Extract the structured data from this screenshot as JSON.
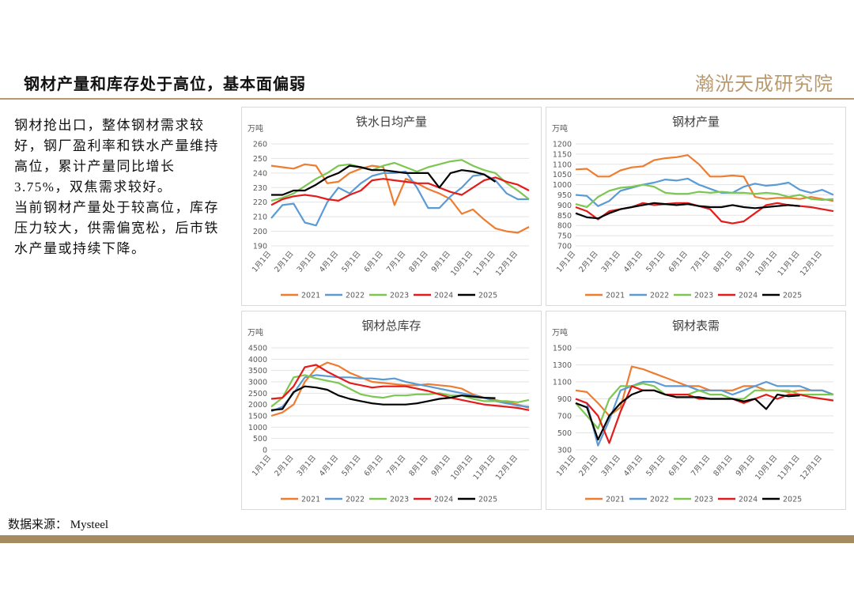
{
  "title": "钢材产量和库存处于高位，基本面偏弱",
  "logo": "瀚洸天成研究院",
  "body": [
    "钢材抢出口，整体钢材需求较好，钢厂盈利率和铁水产量维持高位，累计产量同比增长3.75%，双焦需求较好。",
    "当前钢材产量处于较高位，库存压力较大，供需偏宽松，后市铁水产量或持续下降。"
  ],
  "source": "数据来源： Mysteel",
  "chart_data": [
    {
      "type": "line",
      "title": "铁水日均产量",
      "y_label": "万吨",
      "grid": true,
      "legend": "bottom",
      "categories": [
        "1月1日",
        null,
        "2月1日",
        null,
        "3月1日",
        null,
        "4月1日",
        null,
        "5月1日",
        null,
        "6月1日",
        null,
        "7月1日",
        null,
        "8月1日",
        null,
        "9月1日",
        null,
        "10月1日",
        null,
        "11月1日",
        null,
        "12月1日",
        null
      ],
      "ylim": [
        190,
        260
      ],
      "yticks": [
        190,
        200,
        210,
        220,
        230,
        240,
        250,
        260
      ],
      "series": [
        {
          "name": "2021",
          "color": "#ED7D31",
          "values": [
            245,
            244,
            243,
            246,
            245,
            233,
            234,
            240,
            243,
            245,
            244,
            218,
            236,
            233,
            229,
            226,
            222,
            212,
            215,
            208,
            202,
            200,
            199,
            203
          ]
        },
        {
          "name": "2022",
          "color": "#5B9BD5",
          "values": [
            209,
            218,
            219,
            206,
            204,
            220,
            230,
            226,
            233,
            238,
            240,
            240,
            241,
            230,
            216,
            216,
            224,
            230,
            238,
            239,
            235,
            226,
            222,
            222
          ]
        },
        {
          "name": "2023",
          "color": "#7CC752",
          "values": [
            221,
            223,
            226,
            231,
            236,
            240,
            245,
            246,
            244,
            242,
            245,
            247,
            244,
            241,
            244,
            246,
            248,
            249,
            245,
            242,
            240,
            233,
            228,
            222
          ]
        },
        {
          "name": "2024",
          "color": "#E41B1B",
          "values": [
            218,
            222,
            224,
            225,
            224,
            222,
            221,
            225,
            228,
            235,
            236,
            235,
            234,
            233,
            233,
            230,
            227,
            225,
            230,
            235,
            237,
            234,
            232,
            228
          ]
        },
        {
          "name": "2025",
          "color": "#000000",
          "values": [
            225,
            225,
            228,
            228,
            232,
            237,
            240,
            245,
            244,
            242,
            242,
            241,
            240,
            240,
            240,
            230,
            240,
            242,
            241,
            239,
            234,
            null,
            null,
            null
          ]
        }
      ]
    },
    {
      "type": "line",
      "title": "钢材产量",
      "y_label": "万吨",
      "grid": true,
      "legend": "bottom",
      "categories": [
        "1月1日",
        null,
        "2月1日",
        null,
        "3月1日",
        null,
        "4月1日",
        null,
        "5月1日",
        null,
        "6月1日",
        null,
        "7月1日",
        null,
        "8月1日",
        null,
        "9月1日",
        null,
        "10月1日",
        null,
        "11月1日",
        null,
        "12月1日",
        null
      ],
      "ylim": [
        700,
        1200
      ],
      "yticks": [
        700,
        750,
        800,
        850,
        900,
        950,
        1000,
        1050,
        1100,
        1150,
        1200
      ],
      "series": [
        {
          "name": "2021",
          "color": "#ED7D31",
          "values": [
            1075,
            1078,
            1040,
            1040,
            1070,
            1085,
            1090,
            1120,
            1130,
            1135,
            1145,
            1100,
            1040,
            1040,
            1045,
            1040,
            940,
            930,
            935,
            935,
            930,
            940,
            930,
            920
          ]
        },
        {
          "name": "2022",
          "color": "#5B9BD5",
          "values": [
            950,
            945,
            895,
            920,
            970,
            985,
            1000,
            1010,
            1025,
            1020,
            1030,
            1000,
            980,
            960,
            960,
            990,
            1005,
            995,
            1000,
            1010,
            975,
            960,
            975,
            950
          ]
        },
        {
          "name": "2023",
          "color": "#7CC752",
          "values": [
            905,
            890,
            940,
            970,
            985,
            990,
            1000,
            990,
            960,
            955,
            955,
            965,
            960,
            965,
            960,
            960,
            955,
            960,
            955,
            940,
            950,
            930,
            925,
            930
          ]
        },
        {
          "name": "2024",
          "color": "#E41B1B",
          "values": [
            890,
            870,
            830,
            870,
            880,
            890,
            910,
            900,
            905,
            910,
            910,
            895,
            880,
            820,
            810,
            820,
            860,
            900,
            910,
            900,
            895,
            890,
            880,
            870
          ]
        },
        {
          "name": "2025",
          "color": "#000000",
          "values": [
            860,
            840,
            835,
            860,
            880,
            890,
            900,
            910,
            905,
            900,
            905,
            895,
            890,
            890,
            900,
            890,
            885,
            890,
            895,
            900,
            895,
            null,
            null,
            null
          ]
        }
      ]
    },
    {
      "type": "line",
      "title": "钢材总库存",
      "y_label": "万吨",
      "grid": true,
      "legend": "bottom",
      "categories": [
        "1月1日",
        null,
        "2月1日",
        null,
        "3月1日",
        null,
        "4月1日",
        null,
        "5月1日",
        null,
        "6月1日",
        null,
        "7月1日",
        null,
        "8月1日",
        null,
        "9月1日",
        null,
        "10月1日",
        null,
        "11月1日",
        null,
        "12月1日",
        null
      ],
      "ylim": [
        0,
        4500
      ],
      "yticks": [
        0,
        500,
        1000,
        1500,
        2000,
        2500,
        3000,
        3500,
        4000,
        4500
      ],
      "series": [
        {
          "name": "2021",
          "color": "#ED7D31",
          "values": [
            1500,
            1650,
            2000,
            3000,
            3600,
            3850,
            3700,
            3400,
            3200,
            3000,
            2950,
            2900,
            2850,
            2850,
            2900,
            2850,
            2800,
            2700,
            2450,
            2300,
            2200,
            2100,
            2000,
            1850
          ]
        },
        {
          "name": "2022",
          "color": "#5B9BD5",
          "values": [
            1700,
            1900,
            2500,
            3200,
            3300,
            3250,
            3200,
            3200,
            3150,
            3150,
            3100,
            3150,
            3000,
            2900,
            2800,
            2700,
            2600,
            2500,
            2400,
            2300,
            2150,
            2050,
            1950,
            1900
          ]
        },
        {
          "name": "2023",
          "color": "#7CC752",
          "values": [
            1900,
            2300,
            3200,
            3300,
            3150,
            3050,
            2950,
            2700,
            2450,
            2350,
            2300,
            2400,
            2400,
            2450,
            2450,
            2500,
            2400,
            2400,
            2250,
            2150,
            2150,
            2150,
            2100,
            2200
          ]
        },
        {
          "name": "2024",
          "color": "#E41B1B",
          "values": [
            2250,
            2300,
            2800,
            3650,
            3750,
            3450,
            3200,
            2950,
            2850,
            2750,
            2800,
            2800,
            2800,
            2700,
            2600,
            2450,
            2300,
            2200,
            2100,
            2000,
            1950,
            1900,
            1850,
            1750
          ]
        },
        {
          "name": "2025",
          "color": "#000000",
          "values": [
            1750,
            1800,
            2550,
            2800,
            2750,
            2650,
            2400,
            2250,
            2150,
            2050,
            2000,
            2000,
            2000,
            2050,
            2150,
            2250,
            2300,
            2400,
            2350,
            2300,
            2280,
            null,
            null,
            null
          ]
        }
      ]
    },
    {
      "type": "line",
      "title": "钢材表需",
      "y_label": "万吨",
      "grid": true,
      "legend": "bottom",
      "categories": [
        "1月1日",
        null,
        "2月1日",
        null,
        "3月1日",
        null,
        "4月1日",
        null,
        "5月1日",
        null,
        "6月1日",
        null,
        "7月1日",
        null,
        "8月1日",
        null,
        "9月1日",
        null,
        "10月1日",
        null,
        "11月1日",
        null,
        "12月1日",
        null
      ],
      "ylim": [
        300,
        1500
      ],
      "yticks": [
        300,
        500,
        700,
        900,
        1100,
        1300,
        1500
      ],
      "series": [
        {
          "name": "2021",
          "color": "#ED7D31",
          "values": [
            1000,
            980,
            850,
            700,
            800,
            1280,
            1250,
            1200,
            1150,
            1100,
            1050,
            1050,
            1000,
            1000,
            1000,
            1050,
            1050,
            1000,
            1000,
            980,
            1000,
            1000,
            1000,
            950
          ]
        },
        {
          "name": "2022",
          "color": "#5B9BD5",
          "values": [
            900,
            850,
            350,
            650,
            1000,
            1050,
            1100,
            1100,
            1050,
            1050,
            1050,
            1000,
            1000,
            1000,
            950,
            1000,
            1050,
            1100,
            1050,
            1050,
            1050,
            1000,
            1000,
            950
          ]
        },
        {
          "name": "2023",
          "color": "#7CC752",
          "values": [
            850,
            700,
            550,
            900,
            1050,
            1050,
            1080,
            1050,
            950,
            950,
            950,
            1000,
            950,
            950,
            900,
            900,
            1000,
            1000,
            1000,
            1000,
            950,
            950,
            950,
            950
          ]
        },
        {
          "name": "2024",
          "color": "#E41B1B",
          "values": [
            900,
            850,
            700,
            380,
            750,
            1050,
            1000,
            1000,
            950,
            950,
            950,
            900,
            900,
            900,
            900,
            850,
            900,
            950,
            900,
            950,
            950,
            920,
            900,
            880
          ]
        },
        {
          "name": "2025",
          "color": "#000000",
          "values": [
            850,
            800,
            420,
            700,
            850,
            950,
            1000,
            1000,
            950,
            920,
            920,
            920,
            900,
            900,
            900,
            870,
            900,
            780,
            950,
            930,
            940,
            null,
            null,
            null
          ]
        }
      ]
    }
  ]
}
